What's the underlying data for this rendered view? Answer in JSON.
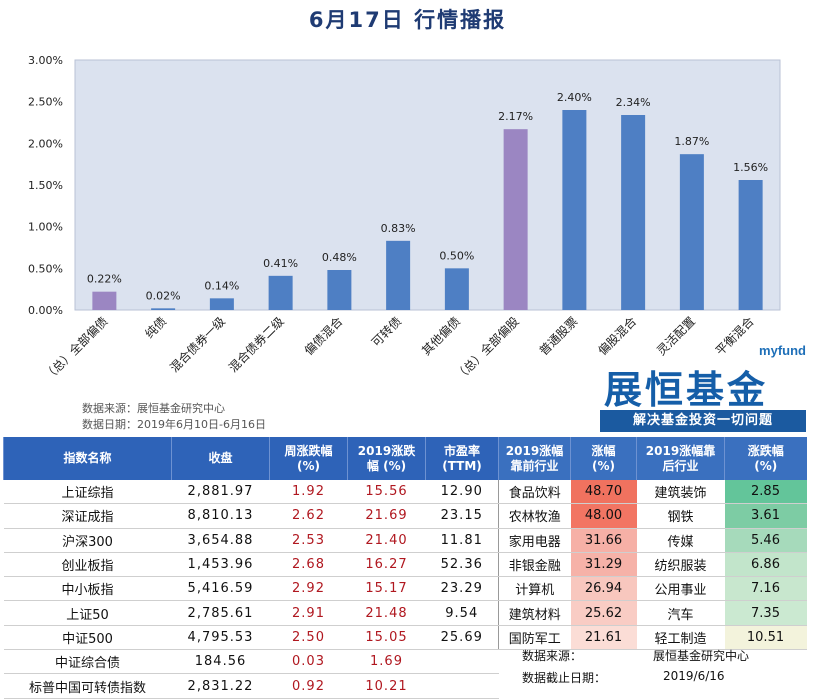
{
  "title": "6月17日  行情播报",
  "chart_data": {
    "type": "bar",
    "categories": [
      "（总）全部偏债",
      "纯债",
      "混合债券一级",
      "混合债券二级",
      "偏债混合",
      "可转债",
      "其他偏债",
      "（总）全部偏股",
      "普通股票",
      "偏股混合",
      "灵活配置",
      "平衡混合"
    ],
    "values": [
      0.22,
      0.02,
      0.14,
      0.41,
      0.48,
      0.83,
      0.5,
      2.17,
      2.4,
      2.34,
      1.87,
      1.56
    ],
    "value_labels": [
      "0.22%",
      "0.02%",
      "0.14%",
      "0.41%",
      "0.48%",
      "0.83%",
      "0.50%",
      "2.17%",
      "2.40%",
      "2.34%",
      "1.87%",
      "1.56%"
    ],
    "bar_colors": [
      "#9b86c2",
      "#4e7fc4",
      "#4e7fc4",
      "#4e7fc4",
      "#4e7fc4",
      "#4e7fc4",
      "#4e7fc4",
      "#9b86c2",
      "#4e7fc4",
      "#4e7fc4",
      "#4e7fc4",
      "#4e7fc4"
    ],
    "yticks": [
      "0.00%",
      "0.50%",
      "1.00%",
      "1.50%",
      "2.00%",
      "2.50%",
      "3.00%"
    ],
    "ylim": [
      0,
      3.0
    ],
    "plot_background": "#dbe2ef",
    "grid": false
  },
  "notes": {
    "source": "数据来源：展恒基金研究中心",
    "date": "数据日期：2019年6月10日-6月16日"
  },
  "logo": {
    "sub": "myfund",
    "main": "展恒基金",
    "slogan": "解决基金投资一切问题"
  },
  "table": {
    "headers": {
      "name": "指数名称",
      "close": "收盘",
      "week": "周涨跌幅\n(%)",
      "ytd": "2019涨跌\n幅 (%)",
      "pe": "市盈率\n(TTM)",
      "top_ind": "2019涨幅\n靠前行业",
      "top_pct": "涨幅\n(%)",
      "bot_ind": "2019涨幅靠\n后行业",
      "bot_pct": "涨跌幅\n(%)"
    },
    "rows": [
      {
        "name": "上证综指",
        "close": "2,881.97",
        "week": "1.92",
        "ytd": "15.56",
        "pe": "12.90"
      },
      {
        "name": "深证成指",
        "close": "8,810.13",
        "week": "2.62",
        "ytd": "21.69",
        "pe": "23.15"
      },
      {
        "name": "沪深300",
        "close": "3,654.88",
        "week": "2.53",
        "ytd": "21.40",
        "pe": "11.81"
      },
      {
        "name": "创业板指",
        "close": "1,453.96",
        "week": "2.68",
        "ytd": "16.27",
        "pe": "52.36"
      },
      {
        "name": "中小板指",
        "close": "5,416.59",
        "week": "2.92",
        "ytd": "15.17",
        "pe": "23.29"
      },
      {
        "name": "上证50",
        "close": "2,785.61",
        "week": "2.91",
        "ytd": "21.48",
        "pe": "9.54"
      },
      {
        "name": "中证500",
        "close": "4,795.53",
        "week": "2.50",
        "ytd": "15.05",
        "pe": "25.69"
      },
      {
        "name": "中证综合债",
        "close": "184.56",
        "week": "0.03",
        "ytd": "1.69",
        "pe": ""
      },
      {
        "name": "标普中国可转债指数",
        "close": "2,831.22",
        "week": "0.92",
        "ytd": "10.21",
        "pe": ""
      }
    ],
    "industries": [
      {
        "top": "食品饮料",
        "top_pct": "48.70",
        "top_bg": "#f0725f",
        "bot": "建筑装饰",
        "bot_pct": "2.85",
        "bot_bg": "#63c59a"
      },
      {
        "top": "农林牧渔",
        "top_pct": "48.00",
        "top_bg": "#f27563",
        "bot": "钢铁",
        "bot_pct": "3.61",
        "bot_bg": "#7dcca4"
      },
      {
        "top": "家用电器",
        "top_pct": "31.66",
        "top_bg": "#f6b0a6",
        "bot": "传媒",
        "bot_pct": "5.46",
        "bot_bg": "#a6dabb"
      },
      {
        "top": "非银金融",
        "top_pct": "31.29",
        "top_bg": "#f6b2a8",
        "bot": "纺织服装",
        "bot_pct": "6.86",
        "bot_bg": "#c2e5cb"
      },
      {
        "top": "计算机",
        "top_pct": "26.94",
        "top_bg": "#f8c7be",
        "bot": "公用事业",
        "bot_pct": "7.16",
        "bot_bg": "#c8e7ce"
      },
      {
        "top": "建筑材料",
        "top_pct": "25.62",
        "top_bg": "#f9ccc4",
        "bot": "汽车",
        "bot_pct": "7.35",
        "bot_bg": "#cbe9d1"
      },
      {
        "top": "国防军工",
        "top_pct": "21.61",
        "top_bg": "#fbddd6",
        "bot": "轻工制造",
        "bot_pct": "10.51",
        "bot_bg": "#f3f3dc"
      }
    ],
    "footer": {
      "source_label": "数据来源：",
      "source_value": "展恒基金研究中心",
      "date_label": "数据截止日期：",
      "date_value": "2019/6/16"
    }
  }
}
